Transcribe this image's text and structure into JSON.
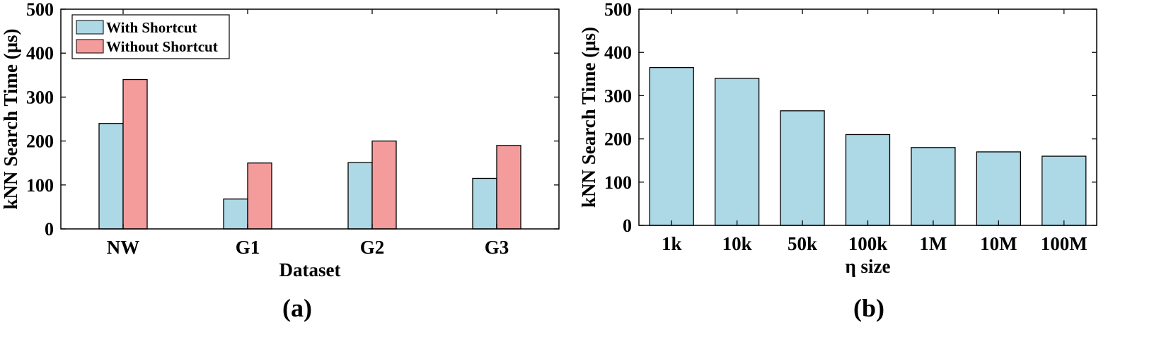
{
  "colors": {
    "series_with": "#add8e6",
    "series_without": "#f49c9c",
    "axis": "#000000"
  },
  "panel_labels": [
    "(a)",
    "(b)"
  ],
  "chart_data": [
    {
      "type": "bar",
      "title": "",
      "xlabel": "Dataset",
      "ylabel": "kNN Search Time (μs)",
      "ylim": [
        0,
        500
      ],
      "yticks": [
        0,
        100,
        200,
        300,
        400,
        500
      ],
      "categories": [
        "NW",
        "G1",
        "G2",
        "G3"
      ],
      "legend": "top-left",
      "grid": false,
      "series": [
        {
          "name": "With Shortcut",
          "values": [
            240,
            68,
            151,
            115
          ]
        },
        {
          "name": "Without Shortcut",
          "values": [
            340,
            150,
            200,
            190
          ]
        }
      ]
    },
    {
      "type": "bar",
      "title": "",
      "xlabel": "η size",
      "ylabel": "kNN Search Time (μs)",
      "ylim": [
        0,
        500
      ],
      "yticks": [
        0,
        100,
        200,
        300,
        400,
        500
      ],
      "categories": [
        "1k",
        "10k",
        "50k",
        "100k",
        "1M",
        "10M",
        "100M"
      ],
      "grid": false,
      "series": [
        {
          "values": [
            365,
            340,
            265,
            210,
            180,
            170,
            160
          ]
        }
      ]
    }
  ]
}
